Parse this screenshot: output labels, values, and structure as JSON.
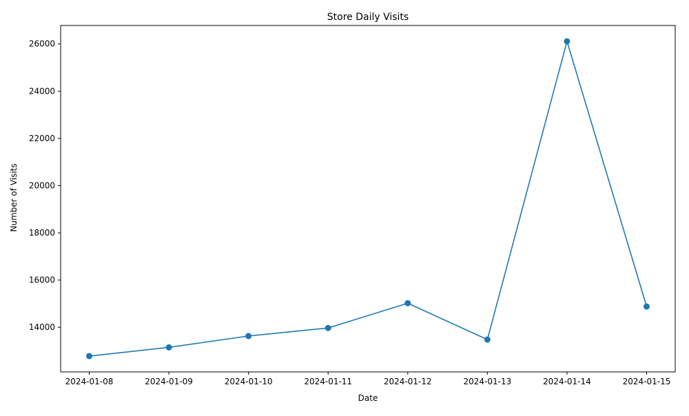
{
  "chart_data": {
    "type": "line",
    "title": "Store Daily Visits",
    "xlabel": "Date",
    "ylabel": "Number of Visits",
    "x": [
      "2024-01-08",
      "2024-01-09",
      "2024-01-10",
      "2024-01-11",
      "2024-01-12",
      "2024-01-13",
      "2024-01-14",
      "2024-01-15"
    ],
    "series": [
      {
        "values": [
          12780,
          13150,
          13630,
          13970,
          15020,
          13480,
          26110,
          14880
        ],
        "color": "#1f77b4",
        "marker": "circle"
      }
    ],
    "ylim": [
      12110,
      26780
    ],
    "yticks": [
      14000,
      16000,
      18000,
      20000,
      22000,
      24000,
      26000
    ],
    "grid": false,
    "legend": "none"
  }
}
